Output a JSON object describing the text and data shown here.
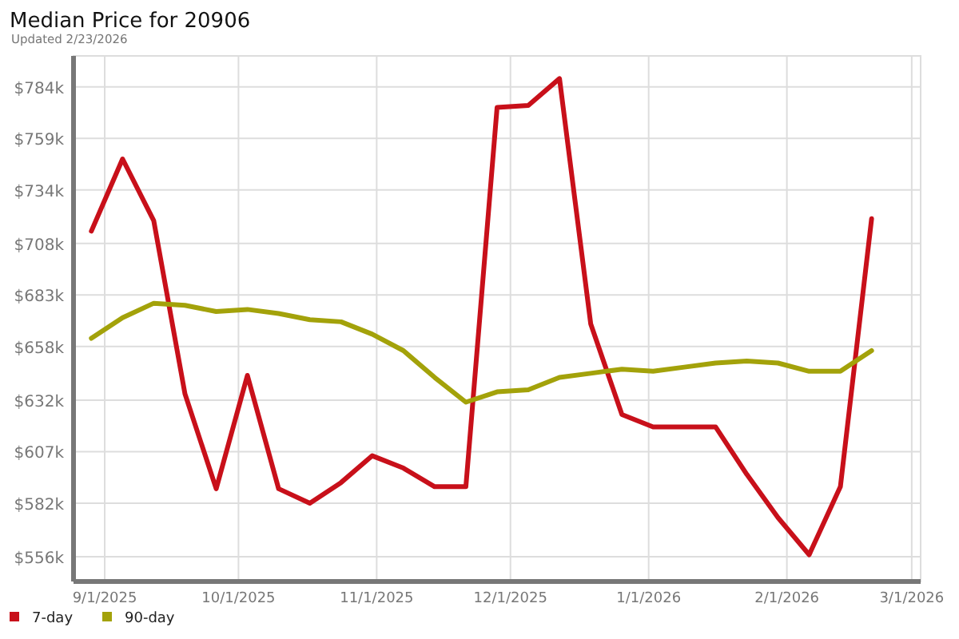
{
  "chart_data": {
    "type": "line",
    "title": "Median Price for 20906",
    "subtitle": "Updated 2/23/2026",
    "x": [
      "2025-08-29",
      "2025-09-05",
      "2025-09-12",
      "2025-09-19",
      "2025-09-26",
      "2025-10-03",
      "2025-10-10",
      "2025-10-17",
      "2025-10-24",
      "2025-10-31",
      "2025-11-07",
      "2025-11-14",
      "2025-11-21",
      "2025-11-28",
      "2025-12-05",
      "2025-12-12",
      "2025-12-19",
      "2025-12-26",
      "2026-01-02",
      "2026-01-09",
      "2026-01-16",
      "2026-01-23",
      "2026-01-30",
      "2026-02-06",
      "2026-02-13",
      "2026-02-20"
    ],
    "series": [
      {
        "name": "7-day",
        "color": "#c8101a",
        "values": [
          714000,
          749000,
          719000,
          635000,
          589000,
          644000,
          589000,
          582000,
          592000,
          605000,
          599000,
          590000,
          590000,
          774000,
          775000,
          788000,
          669000,
          625000,
          619000,
          619000,
          619000,
          596000,
          575000,
          557000,
          590000,
          720000
        ]
      },
      {
        "name": "90-day",
        "color": "#a3a20a",
        "values": [
          662000,
          672000,
          679000,
          678000,
          675000,
          676000,
          674000,
          671000,
          670000,
          664000,
          656000,
          643000,
          631000,
          636000,
          637000,
          643000,
          645000,
          647000,
          646000,
          648000,
          650000,
          651000,
          650000,
          646000,
          646000,
          656000
        ]
      }
    ],
    "xlim": [
      "2025-08-25",
      "2026-03-03"
    ],
    "xticks": [
      {
        "value": "2025-09-01",
        "label": "9/1/2025"
      },
      {
        "value": "2025-10-01",
        "label": "10/1/2025"
      },
      {
        "value": "2025-11-01",
        "label": "11/1/2025"
      },
      {
        "value": "2025-12-01",
        "label": "12/1/2025"
      },
      {
        "value": "2026-01-01",
        "label": "1/1/2026"
      },
      {
        "value": "2026-02-01",
        "label": "2/1/2026"
      },
      {
        "value": "2026-03-01",
        "label": "3/1/2026"
      }
    ],
    "ylim": [
      544000,
      799000
    ],
    "yticks": [
      {
        "value": 556000,
        "label": "$556k"
      },
      {
        "value": 582000,
        "label": "$582k"
      },
      {
        "value": 607000,
        "label": "$607k"
      },
      {
        "value": 632000,
        "label": "$632k"
      },
      {
        "value": 658000,
        "label": "$658k"
      },
      {
        "value": 683000,
        "label": "$683k"
      },
      {
        "value": 708000,
        "label": "$708k"
      },
      {
        "value": 734000,
        "label": "$734k"
      },
      {
        "value": 759000,
        "label": "$759k"
      },
      {
        "value": 784000,
        "label": "$784k"
      }
    ],
    "grid": true,
    "legend": "bottom left",
    "marker": "none",
    "line_style": "solid"
  }
}
